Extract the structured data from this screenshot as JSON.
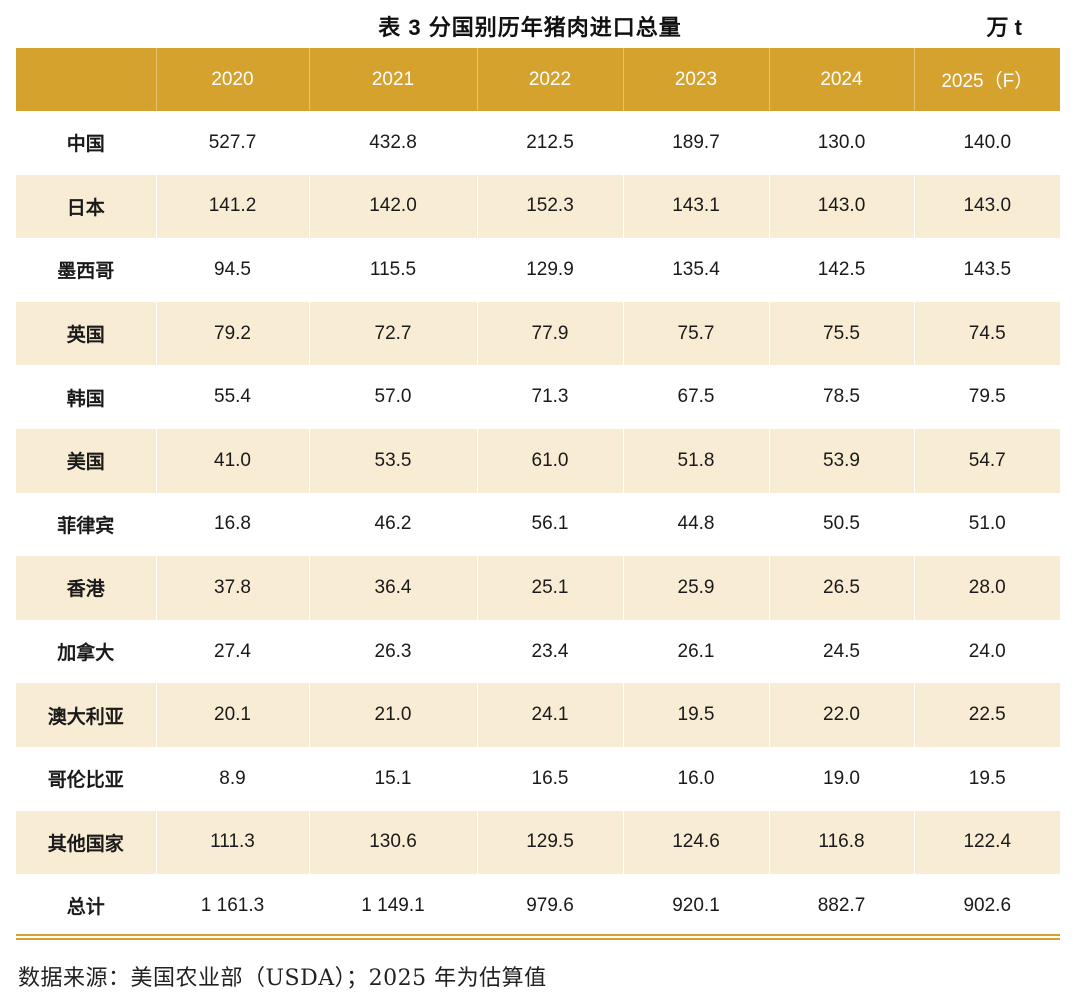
{
  "title": "表 3  分国别历年猪肉进口总量",
  "unit": "万 t",
  "table": {
    "headers": [
      "",
      "2020",
      "2021",
      "2022",
      "2023",
      "2024",
      "2025（F）"
    ],
    "rows": [
      {
        "name": "中国",
        "values": [
          "527.7",
          "432.8",
          "212.5",
          "189.7",
          "130.0",
          "140.0"
        ]
      },
      {
        "name": "日本",
        "values": [
          "141.2",
          "142.0",
          "152.3",
          "143.1",
          "143.0",
          "143.0"
        ]
      },
      {
        "name": "墨西哥",
        "values": [
          "94.5",
          "115.5",
          "129.9",
          "135.4",
          "142.5",
          "143.5"
        ]
      },
      {
        "name": "英国",
        "values": [
          "79.2",
          "72.7",
          "77.9",
          "75.7",
          "75.5",
          "74.5"
        ]
      },
      {
        "name": "韩国",
        "values": [
          "55.4",
          "57.0",
          "71.3",
          "67.5",
          "78.5",
          "79.5"
        ]
      },
      {
        "name": "美国",
        "values": [
          "41.0",
          "53.5",
          "61.0",
          "51.8",
          "53.9",
          "54.7"
        ]
      },
      {
        "name": "菲律宾",
        "values": [
          "16.8",
          "46.2",
          "56.1",
          "44.8",
          "50.5",
          "51.0"
        ]
      },
      {
        "name": "香港",
        "values": [
          "37.8",
          "36.4",
          "25.1",
          "25.9",
          "26.5",
          "28.0"
        ]
      },
      {
        "name": "加拿大",
        "values": [
          "27.4",
          "26.3",
          "23.4",
          "26.1",
          "24.5",
          "24.0"
        ]
      },
      {
        "name": "澳大利亚",
        "values": [
          "20.1",
          "21.0",
          "24.1",
          "19.5",
          "22.0",
          "22.5"
        ]
      },
      {
        "name": "哥伦比亚",
        "values": [
          "8.9",
          "15.1",
          "16.5",
          "16.0",
          "19.0",
          "19.5"
        ]
      },
      {
        "name": "其他国家",
        "values": [
          "111.3",
          "130.6",
          "129.5",
          "124.6",
          "116.8",
          "122.4"
        ]
      },
      {
        "name": "总计",
        "values": [
          "1 161.3",
          "1 149.1",
          "979.6",
          "920.1",
          "882.7",
          "902.6"
        ]
      }
    ]
  },
  "source": "数据来源：美国农业部（USDA）；2025 年为估算值",
  "colors": {
    "header_bg": "#d4a22d",
    "stripe_bg": "#f9ecd4",
    "rule": "#d4a22d"
  }
}
